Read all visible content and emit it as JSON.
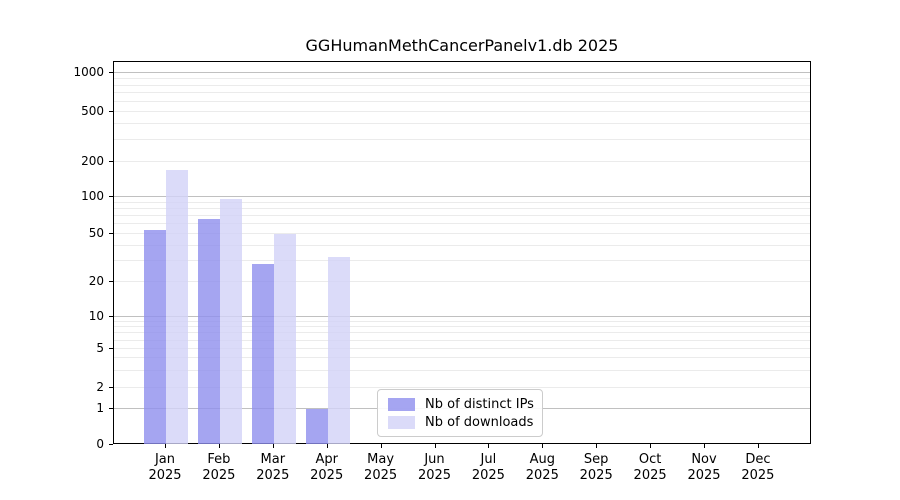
{
  "chart_data": {
    "type": "bar",
    "title": "GGHumanMethCancerPanelv1.db 2025",
    "categories": [
      "Jan",
      "Feb",
      "Mar",
      "Apr",
      "May",
      "Jun",
      "Jul",
      "Aug",
      "Sep",
      "Oct",
      "Nov",
      "Dec"
    ],
    "x_tick_year": "2025",
    "series": [
      {
        "name": "Nb of distinct IPs",
        "color": "#8f8fee",
        "values": [
          54,
          66,
          28,
          1,
          0,
          0,
          0,
          0,
          0,
          0,
          0,
          0
        ]
      },
      {
        "name": "Nb of downloads",
        "color": "#d2d2f8",
        "values": [
          170,
          97,
          50,
          32,
          0,
          0,
          0,
          0,
          0,
          0,
          0,
          0
        ]
      }
    ],
    "y_ticks": [
      0,
      1,
      2,
      5,
      10,
      20,
      50,
      100,
      200,
      500,
      1000
    ],
    "y_scale": "symlog",
    "ylim": [
      0,
      1200
    ],
    "grid": true,
    "legend_position": "lower center",
    "colors": {
      "major_grid": "#c0c0c0",
      "minor_grid": "#ebebeb",
      "axis": "#000000"
    }
  }
}
